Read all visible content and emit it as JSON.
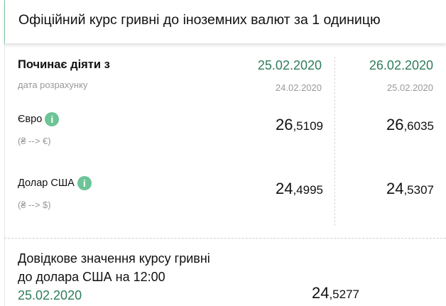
{
  "header": {
    "title": "Офіційний курс гривні до іноземних валют за 1 одиницю"
  },
  "table": {
    "starts_label": "Починає діяти з",
    "calc_label": "дата розрахунку",
    "columns": [
      {
        "date": "25.02.2020",
        "calc_date": "24.02.2020"
      },
      {
        "date": "26.02.2020",
        "calc_date": "25.02.2020"
      }
    ],
    "rows": [
      {
        "name": "Євро",
        "direction": "(₴ --> €)",
        "icon": "info-icon",
        "values": [
          {
            "int": "26",
            "frac": ",5109"
          },
          {
            "int": "26",
            "frac": ",6035"
          }
        ]
      },
      {
        "name": "Долар США",
        "direction": "(₴ --> $)",
        "icon": "info-icon",
        "values": [
          {
            "int": "24",
            "frac": ",4995"
          },
          {
            "int": "24",
            "frac": ",5307"
          }
        ]
      }
    ]
  },
  "reference": {
    "line1": "Довідкове значення курсу гривні",
    "line2": "до долара США на 12:00",
    "date": "25.02.2020",
    "value_int": "24",
    "value_frac": ",5277"
  },
  "colors": {
    "accent": "#2e7d5b",
    "info": "#6cc497"
  }
}
